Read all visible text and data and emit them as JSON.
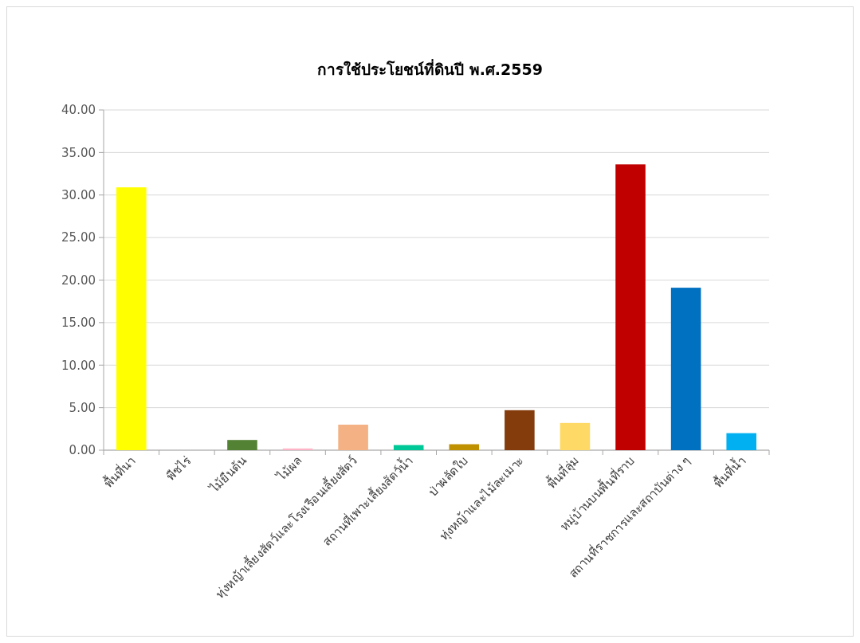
{
  "chart_data": {
    "type": "bar",
    "title": "การใช้ประโยชน์ที่ดินปี พ.ศ.2559",
    "categories": [
      "พื้นที่นา",
      "พืชไร่",
      "ไม้ยืนต้น",
      "ไม้ผล",
      "ทุ่งหญ้าเลี้ยงสัตว์และโรงเรือนเลี้ยงสัตว์",
      "สถานที่เพาะเลี้ยงสัตว์น้ำ",
      "ป่าผลัดใบ",
      "ทุ่งหญ้าและไม้ละเมาะ",
      "พื้นที่ลุ่ม",
      "หมู่บ้านบนพื้นที่ราบ",
      "สถานที่ราชการและสถาบันต่าง ๆ",
      "พื้นที่น้ำ"
    ],
    "values": [
      30.9,
      0,
      1.2,
      0.2,
      3.0,
      0.6,
      0.7,
      4.7,
      3.2,
      33.6,
      19.1,
      2.0
    ],
    "colors": [
      "#ffff00",
      "#a5a5a5",
      "#548235",
      "#ffb3c6",
      "#f4b183",
      "#00c896",
      "#bf9000",
      "#843c0c",
      "#ffd966",
      "#c00000",
      "#0070c0",
      "#00b0f0"
    ],
    "ylim": [
      0,
      40
    ],
    "yticks": [
      {
        "value": 0,
        "label": "0.00"
      },
      {
        "value": 5,
        "label": "5.00"
      },
      {
        "value": 10,
        "label": "10.00"
      },
      {
        "value": 15,
        "label": "15.00"
      },
      {
        "value": 20,
        "label": "20.00"
      },
      {
        "value": 25,
        "label": "25.00"
      },
      {
        "value": 30,
        "label": "30.00"
      },
      {
        "value": 35,
        "label": "35.00"
      },
      {
        "value": 40,
        "label": "40.00"
      }
    ],
    "grid": "y"
  }
}
